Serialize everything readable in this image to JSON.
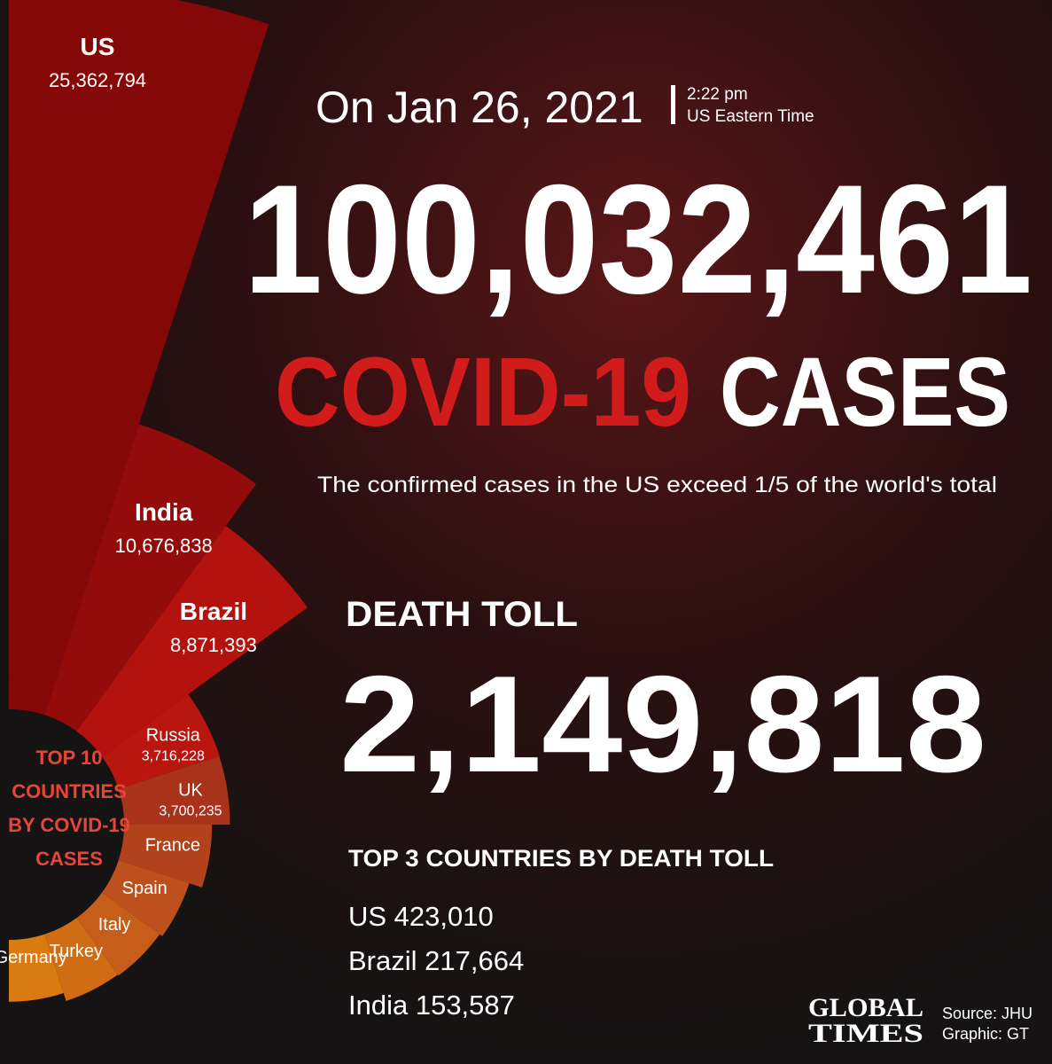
{
  "chart_data": {
    "type": "radial-bar",
    "title": "TOP 10 COUNTRIES BY COVID-19 CASES",
    "categories": [
      "US",
      "India",
      "Brazil",
      "Russia",
      "UK",
      "France",
      "Spain",
      "Italy",
      "Turkey",
      "Germany"
    ],
    "values": [
      25362794,
      10676838,
      8871393,
      3716228,
      3700235,
      3070000,
      2600000,
      2490000,
      2450000,
      2160000
    ],
    "value_labels": [
      "25,362,794",
      "10,676,838",
      "8,871,393",
      "3,716,228",
      "3,700,235",
      null,
      null,
      null,
      null,
      null
    ],
    "colors": [
      "#850808",
      "#930b0b",
      "#b3120f",
      "#b8160f",
      "#a8321a",
      "#b2421c",
      "#bd511d",
      "#c65d19",
      "#d06c13",
      "#d97b10"
    ]
  },
  "header": {
    "date": "On Jan 26, 2021",
    "time": "2:22 pm",
    "zone": "US Eastern Time"
  },
  "total_cases": "100,032,461",
  "covid": "COVID-19",
  "cases": "CASES",
  "subtitle": "The confirmed cases in the US exceed 1/5 of the world's total",
  "death": {
    "title": "DEATH TOLL",
    "value": "2,149,818"
  },
  "top3": {
    "title": "TOP 3 COUNTRIES BY DEATH TOLL",
    "rows": [
      "US 423,010",
      "Brazil  217,664",
      "India 153,587"
    ]
  },
  "footer": {
    "logo1": "GLOBAL",
    "logo2": "TIMES",
    "source": "Source: JHU",
    "graphic": "Graphic: GT"
  }
}
